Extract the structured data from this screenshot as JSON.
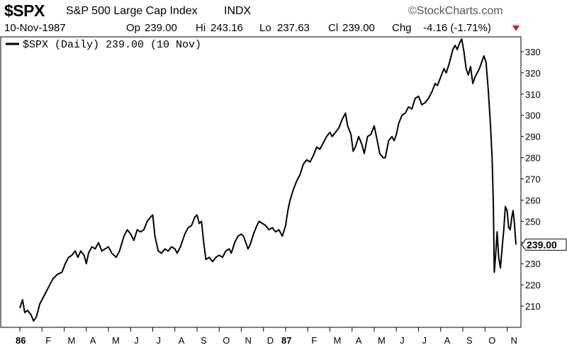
{
  "header": {
    "symbol": "$SPX",
    "name": "S&P 500 Large Cap Index",
    "exchange": "INDX",
    "brand": "©StockCharts.com",
    "date": "10-Nov-1987",
    "open_label": "Op",
    "open": "239.00",
    "high_label": "Hi",
    "high": "243.16",
    "low_label": "Lo",
    "low": "237.63",
    "close_label": "Cl",
    "close": "239.00",
    "change_label": "Chg",
    "change": "-4.16 (-1.71%)",
    "change_direction": "down",
    "down_color": "#cc2222"
  },
  "chart_data": {
    "type": "line",
    "title": "",
    "legend": "$SPX (Daily) 239.00 (10 Nov)",
    "legend_position": "top-left",
    "last_value_label": "239.00",
    "ylim": [
      200,
      337
    ],
    "y_ticks": [
      210,
      220,
      230,
      240,
      250,
      260,
      270,
      280,
      290,
      300,
      310,
      320,
      330
    ],
    "x_tick_labels": [
      "86",
      "F",
      "M",
      "A",
      "M",
      "J",
      "J",
      "A",
      "S",
      "O",
      "N",
      "D",
      "87",
      "F",
      "M",
      "A",
      "M",
      "J",
      "J",
      "A",
      "S",
      "O",
      "N"
    ],
    "x_range_months": [
      0,
      22.4
    ],
    "grid": false,
    "line_color": "#000000",
    "series": [
      {
        "name": "$SPX",
        "points": [
          [
            0.0,
            209
          ],
          [
            0.12,
            213
          ],
          [
            0.22,
            207
          ],
          [
            0.35,
            208
          ],
          [
            0.5,
            206
          ],
          [
            0.62,
            203
          ],
          [
            0.75,
            205
          ],
          [
            0.9,
            211
          ],
          [
            1.1,
            215
          ],
          [
            1.3,
            219
          ],
          [
            1.5,
            223
          ],
          [
            1.7,
            225
          ],
          [
            1.9,
            226
          ],
          [
            2.05,
            230
          ],
          [
            2.2,
            233
          ],
          [
            2.35,
            234
          ],
          [
            2.5,
            236
          ],
          [
            2.62,
            233
          ],
          [
            2.75,
            236
          ],
          [
            2.9,
            234
          ],
          [
            3.0,
            230
          ],
          [
            3.1,
            235
          ],
          [
            3.25,
            238
          ],
          [
            3.4,
            237
          ],
          [
            3.55,
            240
          ],
          [
            3.7,
            236
          ],
          [
            3.85,
            237
          ],
          [
            4.0,
            238
          ],
          [
            4.15,
            235
          ],
          [
            4.35,
            233
          ],
          [
            4.5,
            236
          ],
          [
            4.7,
            243
          ],
          [
            4.85,
            246
          ],
          [
            5.0,
            244
          ],
          [
            5.15,
            241
          ],
          [
            5.3,
            246
          ],
          [
            5.45,
            245
          ],
          [
            5.6,
            246
          ],
          [
            5.75,
            250
          ],
          [
            5.9,
            252
          ],
          [
            6.0,
            253
          ],
          [
            6.1,
            243
          ],
          [
            6.25,
            236
          ],
          [
            6.4,
            235
          ],
          [
            6.55,
            237
          ],
          [
            6.7,
            236
          ],
          [
            6.85,
            238
          ],
          [
            7.0,
            237
          ],
          [
            7.1,
            235
          ],
          [
            7.25,
            238
          ],
          [
            7.45,
            244
          ],
          [
            7.6,
            247
          ],
          [
            7.75,
            248
          ],
          [
            7.9,
            252
          ],
          [
            8.0,
            253
          ],
          [
            8.1,
            249
          ],
          [
            8.2,
            250
          ],
          [
            8.3,
            240
          ],
          [
            8.4,
            232
          ],
          [
            8.55,
            233
          ],
          [
            8.7,
            231
          ],
          [
            8.85,
            233
          ],
          [
            9.0,
            234
          ],
          [
            9.15,
            233
          ],
          [
            9.3,
            236
          ],
          [
            9.45,
            237
          ],
          [
            9.55,
            235
          ],
          [
            9.7,
            240
          ],
          [
            9.85,
            243
          ],
          [
            10.0,
            244
          ],
          [
            10.1,
            243
          ],
          [
            10.2,
            240
          ],
          [
            10.3,
            237
          ],
          [
            10.4,
            239
          ],
          [
            10.55,
            244
          ],
          [
            10.7,
            248
          ],
          [
            10.8,
            250
          ],
          [
            10.95,
            249
          ],
          [
            11.1,
            248
          ],
          [
            11.25,
            246
          ],
          [
            11.4,
            247
          ],
          [
            11.55,
            245
          ],
          [
            11.7,
            246
          ],
          [
            11.85,
            243
          ],
          [
            12.0,
            248
          ],
          [
            12.1,
            255
          ],
          [
            12.2,
            260
          ],
          [
            12.35,
            265
          ],
          [
            12.5,
            269
          ],
          [
            12.65,
            272
          ],
          [
            12.8,
            277
          ],
          [
            12.95,
            279
          ],
          [
            13.1,
            278
          ],
          [
            13.25,
            281
          ],
          [
            13.4,
            285
          ],
          [
            13.55,
            284
          ],
          [
            13.7,
            287
          ],
          [
            13.85,
            290
          ],
          [
            14.0,
            292
          ],
          [
            14.1,
            290
          ],
          [
            14.25,
            292
          ],
          [
            14.4,
            294
          ],
          [
            14.55,
            298
          ],
          [
            14.7,
            301
          ],
          [
            14.8,
            295
          ],
          [
            14.95,
            291
          ],
          [
            15.05,
            283
          ],
          [
            15.15,
            285
          ],
          [
            15.3,
            290
          ],
          [
            15.45,
            286
          ],
          [
            15.55,
            282
          ],
          [
            15.7,
            290
          ],
          [
            15.85,
            291
          ],
          [
            16.0,
            295
          ],
          [
            16.1,
            290
          ],
          [
            16.25,
            282
          ],
          [
            16.4,
            280
          ],
          [
            16.5,
            280
          ],
          [
            16.65,
            288
          ],
          [
            16.8,
            290
          ],
          [
            16.9,
            288
          ],
          [
            17.0,
            291
          ],
          [
            17.1,
            296
          ],
          [
            17.25,
            300
          ],
          [
            17.4,
            301
          ],
          [
            17.55,
            304
          ],
          [
            17.7,
            303
          ],
          [
            17.85,
            308
          ],
          [
            18.0,
            309
          ],
          [
            18.15,
            305
          ],
          [
            18.3,
            306
          ],
          [
            18.45,
            308
          ],
          [
            18.6,
            311
          ],
          [
            18.75,
            315
          ],
          [
            18.85,
            314
          ],
          [
            19.0,
            318
          ],
          [
            19.15,
            322
          ],
          [
            19.25,
            320
          ],
          [
            19.4,
            325
          ],
          [
            19.55,
            331
          ],
          [
            19.65,
            333
          ],
          [
            19.75,
            331
          ],
          [
            19.85,
            334
          ],
          [
            19.95,
            336
          ],
          [
            20.05,
            330
          ],
          [
            20.15,
            322
          ],
          [
            20.25,
            319
          ],
          [
            20.35,
            323
          ],
          [
            20.45,
            315
          ],
          [
            20.55,
            318
          ],
          [
            20.65,
            320
          ],
          [
            20.75,
            322
          ],
          [
            20.85,
            325
          ],
          [
            20.95,
            328
          ],
          [
            21.05,
            325
          ],
          [
            21.15,
            312
          ],
          [
            21.25,
            295
          ],
          [
            21.32,
            280
          ],
          [
            21.38,
            258
          ],
          [
            21.42,
            226
          ],
          [
            21.48,
            234
          ],
          [
            21.55,
            245
          ],
          [
            21.62,
            233
          ],
          [
            21.7,
            228
          ],
          [
            21.78,
            238
          ],
          [
            21.85,
            246
          ],
          [
            21.92,
            257
          ],
          [
            22.0,
            255
          ],
          [
            22.07,
            247
          ],
          [
            22.14,
            246
          ],
          [
            22.21,
            252
          ],
          [
            22.27,
            255
          ],
          [
            22.33,
            249
          ],
          [
            22.4,
            239
          ]
        ]
      }
    ]
  }
}
